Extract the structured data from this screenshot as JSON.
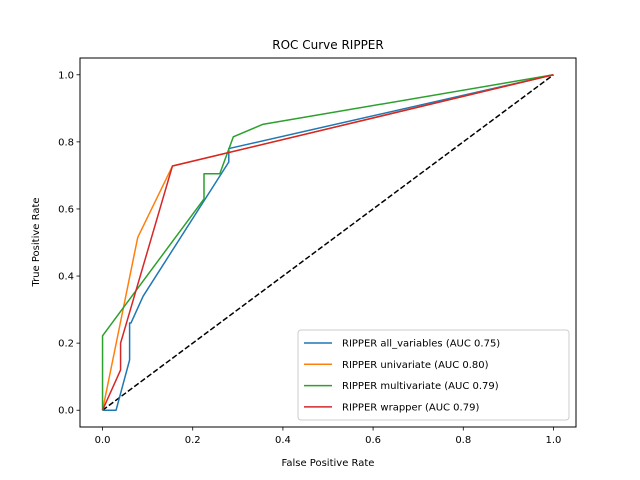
{
  "chart_data": {
    "type": "line",
    "title": "ROC Curve RIPPER",
    "xlabel": "False Positive Rate",
    "ylabel": "True Positive Rate",
    "xlim": [
      -0.05,
      1.05
    ],
    "ylim": [
      -0.05,
      1.05
    ],
    "xticks": [
      0.0,
      0.2,
      0.4,
      0.6,
      0.8,
      1.0
    ],
    "yticks": [
      0.0,
      0.2,
      0.4,
      0.6,
      0.8,
      1.0
    ],
    "xtick_labels": [
      "0.0",
      "0.2",
      "0.4",
      "0.6",
      "0.8",
      "1.0"
    ],
    "ytick_labels": [
      "0.0",
      "0.2",
      "0.4",
      "0.6",
      "0.8",
      "1.0"
    ],
    "grid": false,
    "legend_position": "lower-right",
    "series": [
      {
        "name": "RIPPER all_variables (AUC 0.75)",
        "color": "#1f77b4",
        "x": [
          0.0,
          0.03,
          0.06,
          0.06,
          0.063,
          0.09,
          0.28,
          0.28,
          1.0
        ],
        "y": [
          0.0,
          0.0,
          0.15,
          0.26,
          0.26,
          0.34,
          0.74,
          0.78,
          1.0
        ]
      },
      {
        "name": "RIPPER univariate (AUC 0.80)",
        "color": "#ff7f0e",
        "x": [
          0.0,
          0.078,
          0.155,
          1.0
        ],
        "y": [
          0.0,
          0.515,
          0.728,
          1.0
        ]
      },
      {
        "name": "RIPPER multivariate (AUC 0.79)",
        "color": "#2ca02c",
        "x": [
          0.0,
          0.0,
          0.225,
          0.225,
          0.26,
          0.29,
          0.355,
          1.0
        ],
        "y": [
          0.0,
          0.222,
          0.63,
          0.705,
          0.705,
          0.815,
          0.852,
          1.0
        ]
      },
      {
        "name": "RIPPER wrapper (AUC 0.79)",
        "color": "#d62728",
        "x": [
          0.0,
          0.04,
          0.04,
          0.155,
          1.0
        ],
        "y": [
          0.0,
          0.12,
          0.2,
          0.728,
          1.0
        ]
      }
    ],
    "reference_line": {
      "color": "#000000",
      "style": "dashed",
      "x": [
        0.0,
        1.0
      ],
      "y": [
        0.0,
        1.0
      ]
    }
  }
}
